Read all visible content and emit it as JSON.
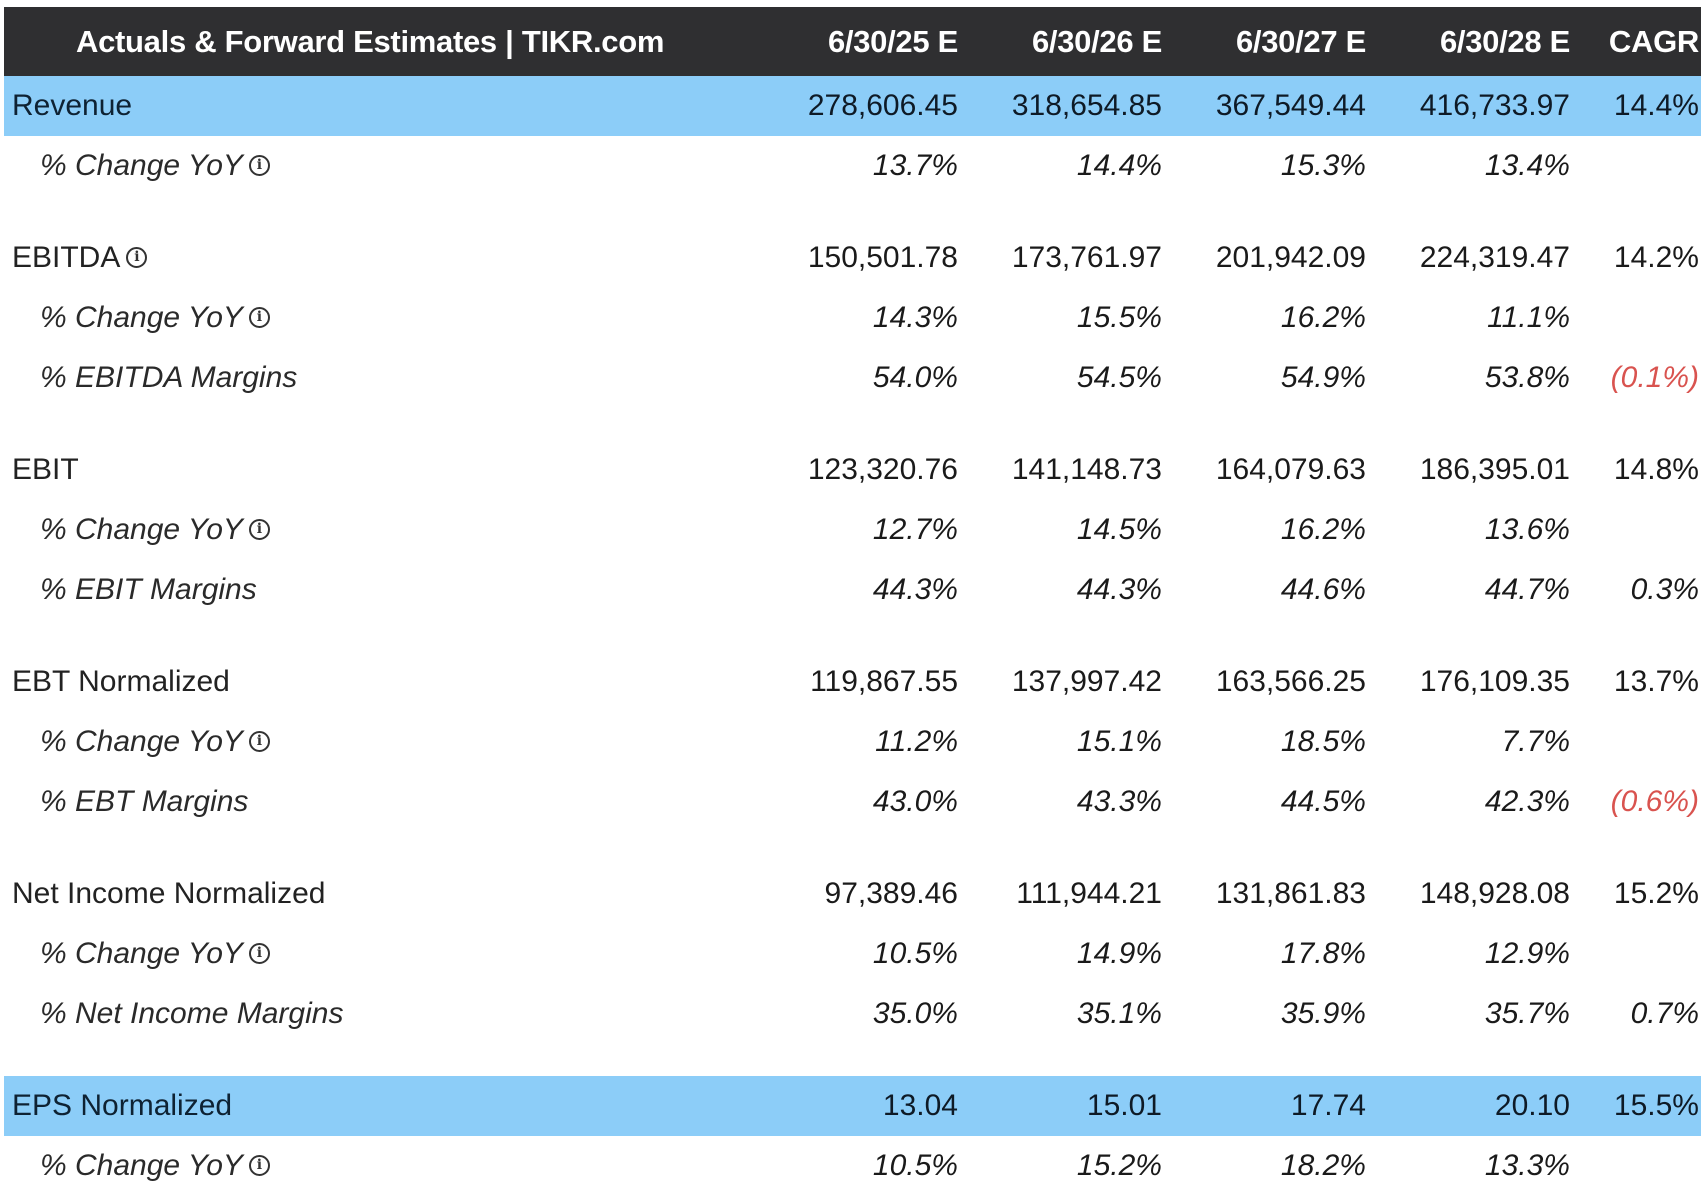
{
  "header": {
    "title": "Actuals & Forward Estimates | TIKR.com",
    "columns": [
      "6/30/25 E",
      "6/30/26 E",
      "6/30/27 E",
      "6/30/28 E",
      "CAGR"
    ]
  },
  "colors": {
    "header_bg": "#2f2f31",
    "highlight_bg": "#8ccdf8",
    "negative": "#d9534f"
  },
  "rows": [
    {
      "label": "Revenue",
      "values": [
        "278,606.45",
        "318,654.85",
        "367,549.44",
        "416,733.97",
        "14.4%"
      ],
      "highlight": true
    },
    {
      "label": "% Change YoY",
      "info": "info-icon",
      "values": [
        "13.7%",
        "14.4%",
        "15.3%",
        "13.4%",
        ""
      ]
    },
    {
      "label": "EBITDA",
      "info": "info-icon",
      "values": [
        "150,501.78",
        "173,761.97",
        "201,942.09",
        "224,319.47",
        "14.2%"
      ]
    },
    {
      "label": "% Change YoY",
      "info": "info-icon",
      "values": [
        "14.3%",
        "15.5%",
        "16.2%",
        "11.1%",
        ""
      ]
    },
    {
      "label": "% EBITDA Margins",
      "values": [
        "54.0%",
        "54.5%",
        "54.9%",
        "53.8%",
        "(0.1%)"
      ]
    },
    {
      "label": "EBIT",
      "values": [
        "123,320.76",
        "141,148.73",
        "164,079.63",
        "186,395.01",
        "14.8%"
      ]
    },
    {
      "label": "% Change YoY",
      "info": "info-icon",
      "values": [
        "12.7%",
        "14.5%",
        "16.2%",
        "13.6%",
        ""
      ]
    },
    {
      "label": "% EBIT Margins",
      "values": [
        "44.3%",
        "44.3%",
        "44.6%",
        "44.7%",
        "0.3%"
      ]
    },
    {
      "label": "EBT Normalized",
      "values": [
        "119,867.55",
        "137,997.42",
        "163,566.25",
        "176,109.35",
        "13.7%"
      ]
    },
    {
      "label": "% Change YoY",
      "info": "info-icon",
      "values": [
        "11.2%",
        "15.1%",
        "18.5%",
        "7.7%",
        ""
      ]
    },
    {
      "label": "% EBT Margins",
      "values": [
        "43.0%",
        "43.3%",
        "44.5%",
        "42.3%",
        "(0.6%)"
      ]
    },
    {
      "label": "Net Income Normalized",
      "values": [
        "97,389.46",
        "111,944.21",
        "131,861.83",
        "148,928.08",
        "15.2%"
      ]
    },
    {
      "label": "% Change YoY",
      "info": "info-icon",
      "values": [
        "10.5%",
        "14.9%",
        "17.8%",
        "12.9%",
        ""
      ]
    },
    {
      "label": "% Net Income Margins",
      "values": [
        "35.0%",
        "35.1%",
        "35.9%",
        "35.7%",
        "0.7%"
      ]
    },
    {
      "label": "EPS Normalized",
      "values": [
        "13.04",
        "15.01",
        "17.74",
        "20.10",
        "15.5%"
      ],
      "highlight": true
    },
    {
      "label": "% Change YoY",
      "info": "info-icon",
      "values": [
        "10.5%",
        "15.2%",
        "18.2%",
        "13.3%",
        ""
      ]
    }
  ]
}
